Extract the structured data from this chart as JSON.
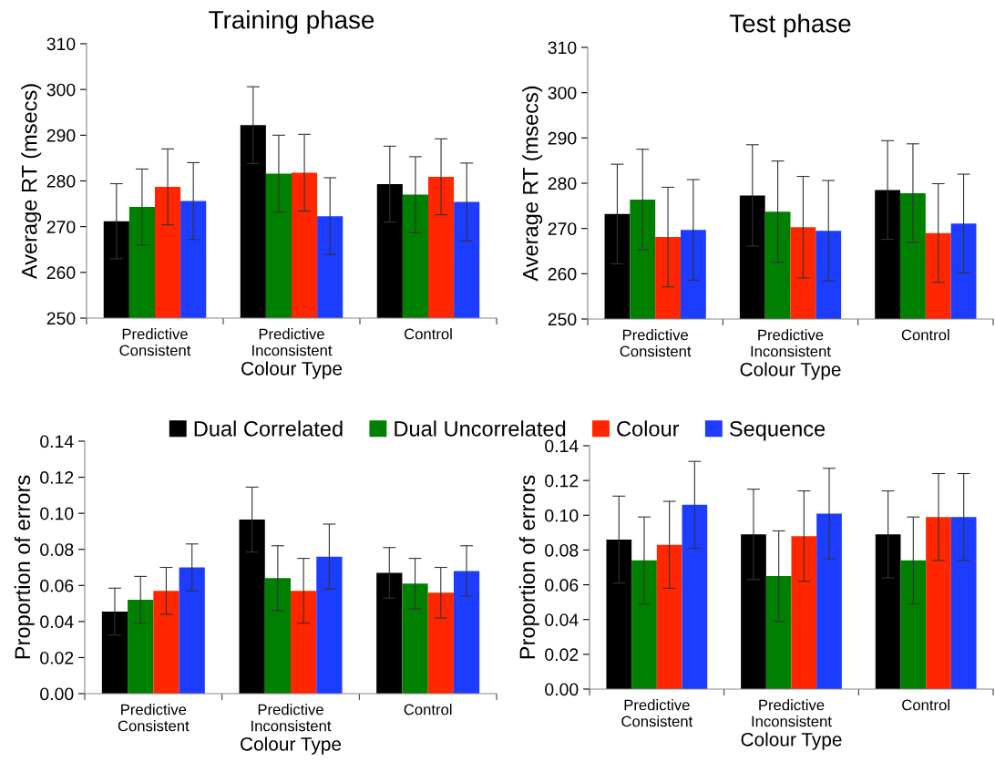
{
  "chart_data": [
    {
      "type": "bar",
      "title": "Training phase",
      "xlabel": "Colour Type",
      "ylabel": "Average RT (msecs)",
      "categories": [
        "Predictive\nConsistent",
        "Predictive\nInconsistent",
        "Control"
      ],
      "ylim": [
        250,
        310
      ],
      "yticks": [
        250,
        260,
        270,
        280,
        290,
        300,
        310
      ],
      "grid": false,
      "legend": "bottom",
      "series": [
        {
          "name": "Dual Correlated",
          "color": "#000000",
          "values": [
            271.2,
            292.2,
            279.3
          ],
          "errors": [
            8.2,
            8.4,
            8.3
          ]
        },
        {
          "name": "Dual Uncorrelated",
          "color": "#008000",
          "values": [
            274.3,
            281.6,
            277.0
          ],
          "errors": [
            8.3,
            8.4,
            8.3
          ]
        },
        {
          "name": "Colour",
          "color": "#ff2600",
          "values": [
            278.7,
            281.8,
            280.9
          ],
          "errors": [
            8.3,
            8.4,
            8.3
          ]
        },
        {
          "name": "Sequence",
          "color": "#1c3cff",
          "values": [
            275.6,
            272.3,
            275.4
          ],
          "errors": [
            8.4,
            8.4,
            8.5
          ]
        }
      ]
    },
    {
      "type": "bar",
      "title": "Test phase",
      "xlabel": "Colour Type",
      "ylabel": "Average RT (msecs)",
      "categories": [
        "Predictive\nConsistent",
        "Predictive\nInconsistent",
        "Control"
      ],
      "ylim": [
        250,
        310
      ],
      "yticks": [
        250,
        260,
        270,
        280,
        290,
        300,
        310
      ],
      "grid": false,
      "series": [
        {
          "color": "#000000",
          "values": [
            273.2,
            277.3,
            278.5
          ],
          "errors": [
            11.0,
            11.2,
            10.9
          ]
        },
        {
          "color": "#008000",
          "values": [
            276.4,
            273.7,
            277.8
          ],
          "errors": [
            11.1,
            11.2,
            10.9
          ]
        },
        {
          "color": "#ff2600",
          "values": [
            268.1,
            270.3,
            269.0
          ],
          "errors": [
            11.0,
            11.2,
            10.9
          ]
        },
        {
          "color": "#1c3cff",
          "values": [
            269.7,
            269.5,
            271.1
          ],
          "errors": [
            11.1,
            11.1,
            10.9
          ]
        }
      ]
    },
    {
      "type": "bar",
      "xlabel": "Colour Type",
      "ylabel": "Proportion of errors",
      "categories": [
        "Predictive\nConsistent",
        "Predictive\nInconsistent",
        "Control"
      ],
      "ylim": [
        0,
        0.14
      ],
      "yticks": [
        {
          "value": 0,
          "label": "0.00"
        },
        {
          "value": 0.02,
          "label": "0.02"
        },
        {
          "value": 0.04,
          "label": "0.04"
        },
        {
          "value": 0.06,
          "label": "0.06"
        },
        {
          "value": 0.08,
          "label": "0.08"
        },
        {
          "value": 0.1,
          "label": "0.10"
        },
        {
          "value": 0.12,
          "label": "0.12"
        },
        {
          "value": 0.14,
          "label": "0.14"
        }
      ],
      "grid": false,
      "series": [
        {
          "color": "#000000",
          "values": [
            0.0455,
            0.0965,
            0.067
          ],
          "errors": [
            0.013,
            0.018,
            0.014
          ]
        },
        {
          "color": "#008000",
          "values": [
            0.052,
            0.064,
            0.061
          ],
          "errors": [
            0.013,
            0.018,
            0.014
          ]
        },
        {
          "color": "#ff2600",
          "values": [
            0.057,
            0.057,
            0.056
          ],
          "errors": [
            0.013,
            0.018,
            0.014
          ]
        },
        {
          "color": "#1c3cff",
          "values": [
            0.07,
            0.076,
            0.068
          ],
          "errors": [
            0.013,
            0.018,
            0.014
          ]
        }
      ]
    },
    {
      "type": "bar",
      "xlabel": "Colour Type",
      "ylabel": "Proportion of errors",
      "categories": [
        "Predictive\nConsistent",
        "Predictive\nInconsistent",
        "Control"
      ],
      "ylim": [
        0,
        0.14
      ],
      "yticks": [
        {
          "value": 0,
          "label": "0.00"
        },
        {
          "value": 0.02,
          "label": "0.02"
        },
        {
          "value": 0.04,
          "label": "0.04"
        },
        {
          "value": 0.06,
          "label": "0.06"
        },
        {
          "value": 0.08,
          "label": "0.08"
        },
        {
          "value": 0.1,
          "label": "0.10"
        },
        {
          "value": 0.12,
          "label": "0.12"
        },
        {
          "value": 0.14,
          "label": "0.14"
        }
      ],
      "grid": false,
      "series": [
        {
          "color": "#000000",
          "values": [
            0.086,
            0.089,
            0.089
          ],
          "errors": [
            0.025,
            0.026,
            0.025
          ]
        },
        {
          "color": "#008000",
          "values": [
            0.074,
            0.065,
            0.074
          ],
          "errors": [
            0.025,
            0.026,
            0.025
          ]
        },
        {
          "color": "#ff2600",
          "values": [
            0.083,
            0.088,
            0.099
          ],
          "errors": [
            0.025,
            0.026,
            0.025
          ]
        },
        {
          "color": "#1c3cff",
          "values": [
            0.106,
            0.101,
            0.099
          ],
          "errors": [
            0.025,
            0.026,
            0.025
          ]
        }
      ]
    }
  ]
}
